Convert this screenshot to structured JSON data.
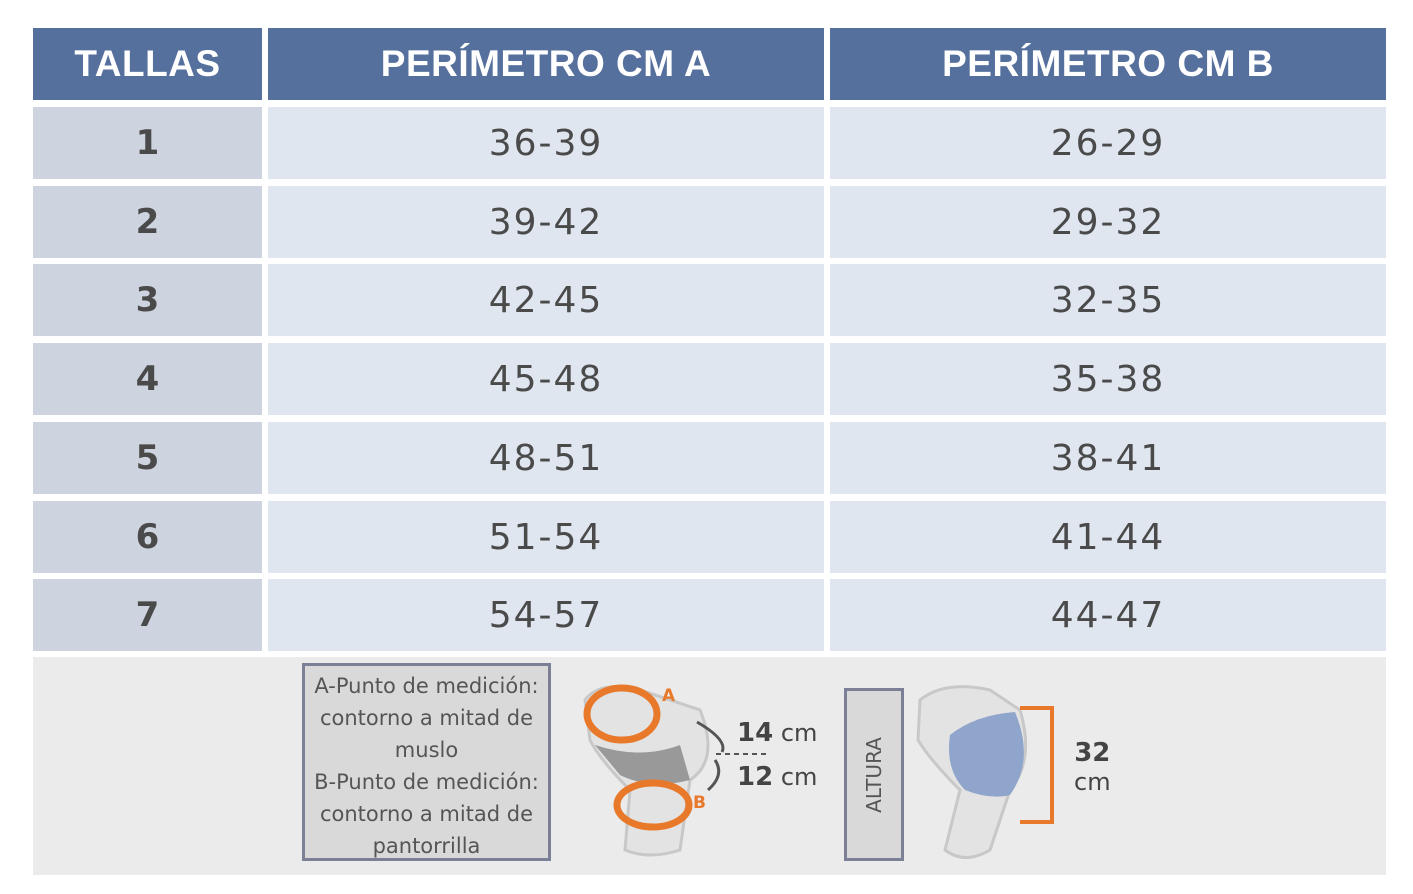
{
  "table": {
    "header": [
      "TALLAS",
      "PERÍMETRO CM A",
      "PERÍMETRO CM B"
    ],
    "rows": [
      [
        "1",
        "36-39",
        "26-29"
      ],
      [
        "2",
        "39-42",
        "29-32"
      ],
      [
        "3",
        "42-45",
        "32-35"
      ],
      [
        "4",
        "45-48",
        "35-38"
      ],
      [
        "5",
        "48-51",
        "38-41"
      ],
      [
        "6",
        "51-54",
        "41-44"
      ],
      [
        "7",
        "54-57",
        "44-47"
      ]
    ]
  },
  "legend": {
    "notes": [
      "A-Punto de medición: contorno a mitad de muslo",
      "B-Punto de medición: contorno a mitad de pantorrilla"
    ],
    "point_a": "A",
    "point_b": "B",
    "upper": {
      "number": "14",
      "unit": "cm"
    },
    "lower": {
      "number": "12",
      "unit": "cm"
    },
    "height_label": "ALTURA",
    "height": {
      "number": "32",
      "unit": "cm"
    }
  }
}
